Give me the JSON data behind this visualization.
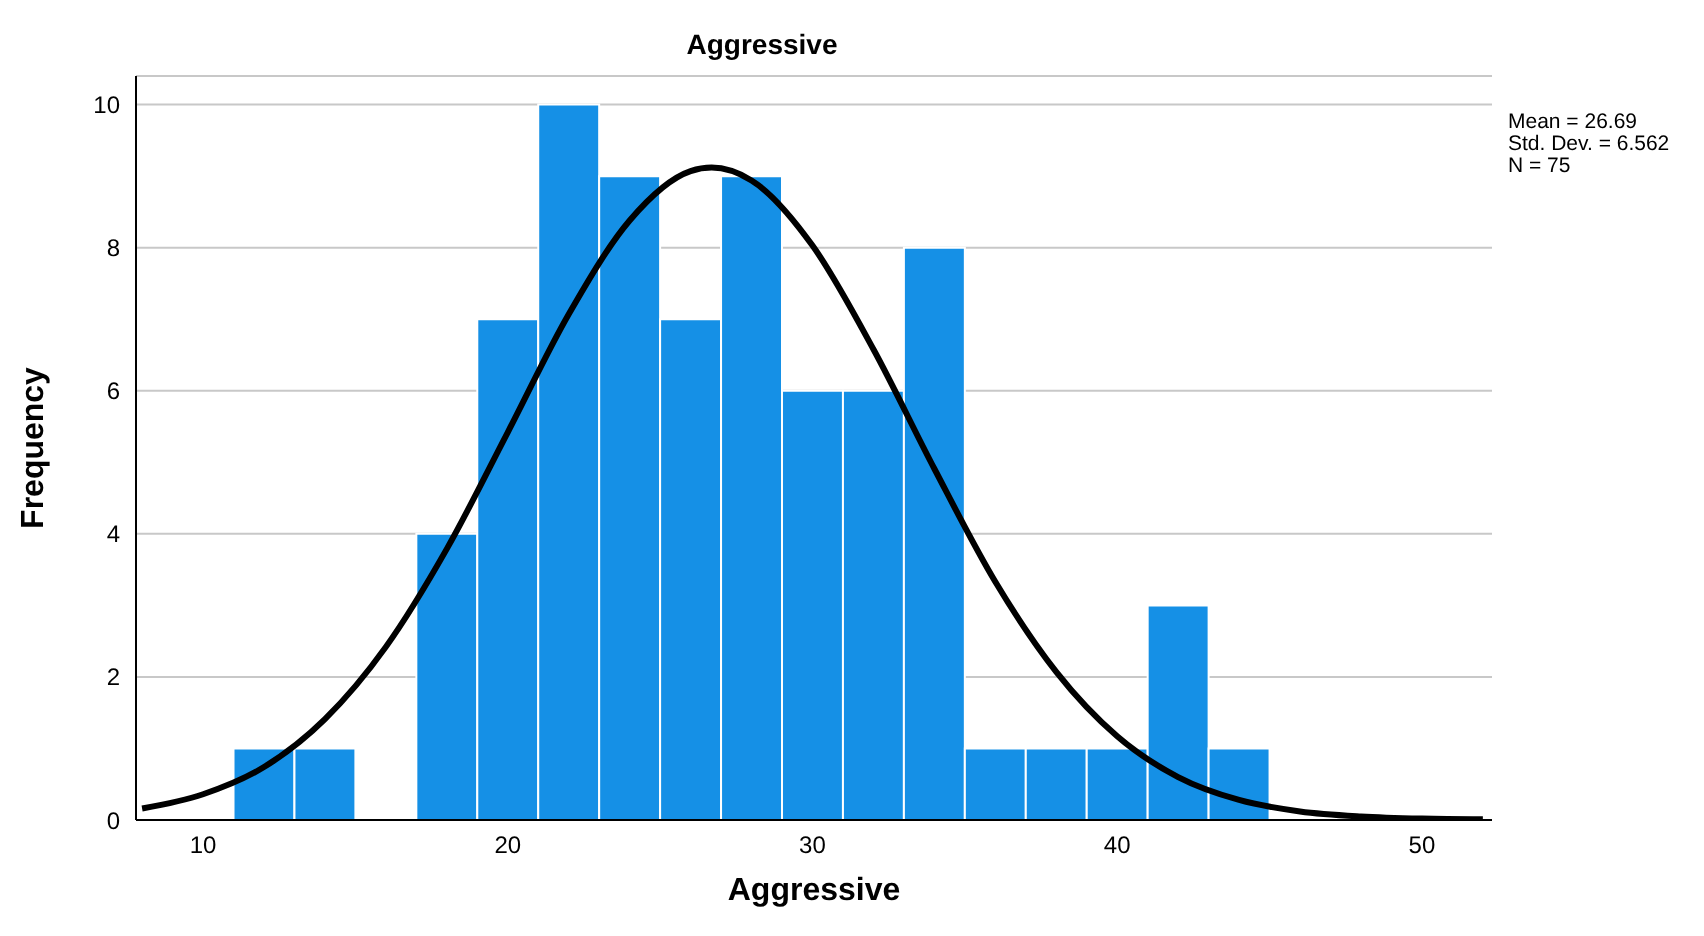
{
  "chart_data": {
    "type": "histogram",
    "title": "Aggressive",
    "xlabel": "Aggressive",
    "ylabel": "Frequency",
    "bins": [
      11,
      13,
      15,
      17,
      19,
      21,
      23,
      25,
      27,
      29,
      31,
      33,
      35,
      37,
      39,
      41,
      43,
      45
    ],
    "values": [
      1,
      1,
      0,
      4,
      7,
      10,
      9,
      7,
      9,
      6,
      6,
      8,
      1,
      1,
      1,
      3,
      1
    ],
    "color": "#1590e6",
    "series": [
      {
        "type": "line",
        "color": "#000000",
        "x": [
          8,
          10,
          12,
          14,
          16,
          18,
          20,
          22,
          24,
          26,
          26.69,
          28,
          30,
          32,
          34,
          36,
          38,
          40,
          42,
          44,
          46,
          48,
          50,
          52
        ],
        "values": [
          0.16,
          0.36,
          0.74,
          1.41,
          2.42,
          3.79,
          5.42,
          7.07,
          8.38,
          9.07,
          9.12,
          8.94,
          8.03,
          6.58,
          4.91,
          3.33,
          2.07,
          1.17,
          0.6,
          0.28,
          0.12,
          0.05,
          0.02,
          0.01
        ]
      }
    ],
    "xlim": [
      7.8,
      52.3
    ],
    "xticks": [
      10,
      20,
      30,
      40,
      50
    ],
    "ylim": [
      0,
      10.4
    ],
    "yticks": [
      0,
      2,
      4,
      6,
      8,
      10
    ],
    "grid": "y",
    "annotations": [
      "Mean = 26.69",
      "Std. Dev. = 6.562",
      "N = 75"
    ]
  }
}
